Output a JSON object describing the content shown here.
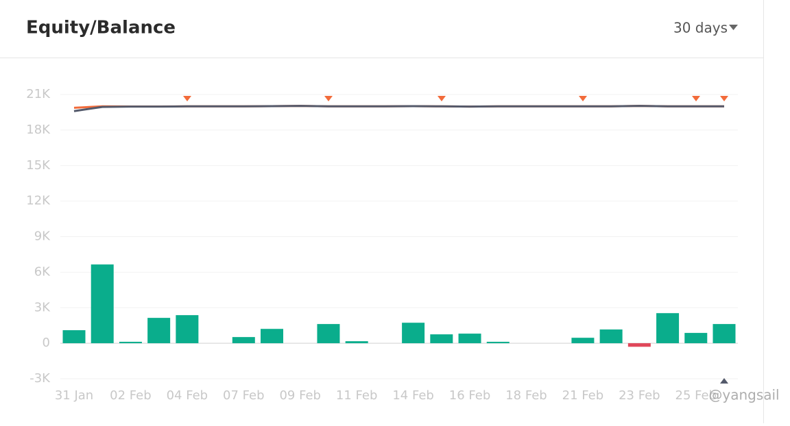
{
  "header": {
    "title": "Equity/Balance",
    "period": "30 days"
  },
  "chart_data": {
    "type": "combo",
    "categories": [
      "31 Jan",
      null,
      "02 Feb",
      null,
      "04 Feb",
      null,
      "07 Feb",
      null,
      "09 Feb",
      null,
      "11 Feb",
      null,
      "14 Feb",
      null,
      "16 Feb",
      null,
      "18 Feb",
      null,
      "21 Feb",
      null,
      "23 Feb",
      null,
      "25 Feb",
      null
    ],
    "series": [
      {
        "type": "bar",
        "color": "#0aad8c",
        "negative_color": "#e0475a",
        "values": [
          1100,
          6650,
          120,
          2140,
          2370,
          0,
          520,
          1210,
          0,
          1620,
          170,
          0,
          1730,
          750,
          810,
          120,
          0,
          0,
          460,
          1160,
          -300,
          2540,
          870,
          1620
        ]
      },
      {
        "type": "line",
        "color": "#f26b3a",
        "values": [
          19880,
          20000,
          19990,
          19990,
          20000,
          20000,
          20000,
          20020,
          20040,
          20000,
          20000,
          20000,
          20020,
          20000,
          19980,
          20000,
          20000,
          20000,
          20000,
          20000,
          20040,
          20000,
          20000,
          20000
        ]
      },
      {
        "type": "line",
        "color": "#545a6b",
        "values": [
          19600,
          19950,
          19980,
          19980,
          20000,
          20000,
          20000,
          20020,
          20040,
          20000,
          20000,
          20000,
          20020,
          20000,
          19980,
          20000,
          20000,
          20000,
          20000,
          20000,
          20040,
          20000,
          20000,
          20000
        ]
      }
    ],
    "ylim": [
      -3000,
      21000
    ],
    "yticks": [
      {
        "value": -3000,
        "label": "-3K"
      },
      0,
      {
        "value": 3000,
        "label": "3K"
      },
      {
        "value": 6000,
        "label": "6K"
      },
      {
        "value": 9000,
        "label": "9K"
      },
      {
        "value": 12000,
        "label": "12K"
      },
      {
        "value": 15000,
        "label": "15K"
      },
      {
        "value": 18000,
        "label": "18K"
      },
      {
        "value": 21000,
        "label": "21K"
      }
    ],
    "grid": true
  },
  "watermark": "@yangsail"
}
